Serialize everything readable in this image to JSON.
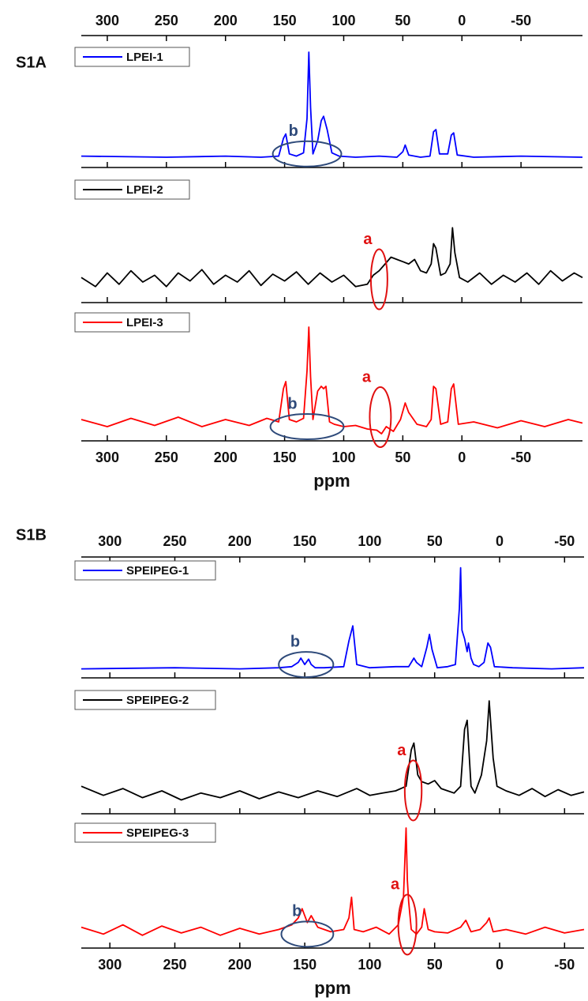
{
  "chart_data": [
    {
      "type": "line",
      "title": "S1A",
      "xlabel": "ppm",
      "xlim": [
        322,
        -102
      ],
      "xticks": [
        300,
        250,
        200,
        150,
        100,
        50,
        0,
        -50
      ],
      "ylim": [
        0,
        100
      ],
      "series": [
        {
          "name": "LPEI-1",
          "color": "#0000ff",
          "x": [
            322,
            250,
            200,
            170,
            155,
            151,
            149,
            146,
            140,
            134,
            131,
            129.5,
            128,
            126,
            122,
            119,
            117,
            114,
            110,
            104,
            90,
            70,
            55,
            50,
            48,
            45,
            35,
            27,
            24,
            22,
            19,
            12,
            9,
            7,
            4,
            -10,
            -50,
            -102
          ],
          "values": [
            6,
            5,
            6,
            5,
            6,
            22,
            26,
            8,
            6,
            9,
            40,
            100,
            50,
            8,
            20,
            38,
            42,
            30,
            9,
            6,
            5,
            6,
            5,
            10,
            16,
            7,
            5,
            6,
            28,
            30,
            8,
            8,
            25,
            27,
            7,
            5,
            6,
            5
          ]
        },
        {
          "name": "LPEI-2",
          "color": "#000000",
          "x": [
            322,
            310,
            300,
            290,
            280,
            270,
            260,
            250,
            240,
            230,
            220,
            210,
            200,
            190,
            180,
            170,
            160,
            150,
            140,
            130,
            120,
            110,
            100,
            90,
            80,
            75,
            70,
            65,
            60,
            55,
            50,
            45,
            40,
            35,
            30,
            26,
            24,
            22,
            18,
            14,
            10,
            8,
            6,
            2,
            -5,
            -15,
            -25,
            -35,
            -45,
            -55,
            -65,
            -75,
            -85,
            -95,
            -102
          ],
          "values": [
            18,
            10,
            22,
            12,
            24,
            14,
            20,
            10,
            22,
            15,
            25,
            12,
            20,
            14,
            24,
            11,
            21,
            15,
            23,
            12,
            22,
            14,
            20,
            10,
            12,
            20,
            24,
            30,
            36,
            34,
            32,
            30,
            34,
            24,
            22,
            30,
            48,
            44,
            20,
            22,
            30,
            62,
            40,
            18,
            14,
            22,
            12,
            20,
            14,
            22,
            12,
            24,
            15,
            22,
            18
          ]
        },
        {
          "name": "LPEI-3",
          "color": "#ff0000",
          "x": [
            322,
            300,
            280,
            260,
            240,
            220,
            200,
            180,
            165,
            155,
            151,
            149,
            146,
            140,
            134,
            131,
            129.5,
            128,
            126,
            122,
            119,
            117,
            115,
            112,
            108,
            100,
            90,
            80,
            72,
            68,
            64,
            58,
            52,
            48,
            45,
            38,
            30,
            26,
            24,
            22,
            18,
            12,
            9,
            7,
            3,
            -10,
            -30,
            -50,
            -70,
            -90,
            -102
          ],
          "values": [
            14,
            8,
            15,
            9,
            16,
            8,
            14,
            9,
            15,
            12,
            40,
            46,
            14,
            12,
            15,
            55,
            92,
            50,
            14,
            38,
            42,
            40,
            42,
            12,
            10,
            8,
            9,
            6,
            5,
            2,
            8,
            4,
            14,
            28,
            20,
            10,
            8,
            14,
            42,
            40,
            10,
            12,
            40,
            44,
            10,
            12,
            7,
            13,
            8,
            14,
            11
          ]
        }
      ],
      "annotations": [
        {
          "text": "b",
          "series": 0,
          "span": [
            160,
            102
          ],
          "color": "#2e4a7a"
        },
        {
          "text": "a",
          "series": 1,
          "span": [
            77,
            63
          ],
          "color": "#e01010"
        },
        {
          "text": "b",
          "series": 2,
          "span": [
            162,
            100
          ],
          "color": "#2e4a7a"
        },
        {
          "text": "a",
          "series": 2,
          "span": [
            78,
            60
          ],
          "color": "#e01010"
        }
      ]
    },
    {
      "type": "line",
      "title": "S1B",
      "xlabel": "ppm",
      "xlim": [
        322,
        -65
      ],
      "xticks": [
        300,
        250,
        200,
        150,
        100,
        50,
        0,
        -50
      ],
      "ylim": [
        0,
        100
      ],
      "series": [
        {
          "name": "SPEIPEG-1",
          "color": "#0000ff",
          "x": [
            322,
            250,
            200,
            170,
            160,
            155,
            153,
            150,
            147,
            145,
            142,
            135,
            120,
            116,
            113,
            110,
            100,
            80,
            70,
            66,
            64,
            60,
            56,
            54,
            52,
            48,
            40,
            34,
            31,
            30,
            29,
            27,
            25,
            24,
            22,
            20,
            16,
            12,
            9,
            7,
            4,
            -10,
            -40,
            -65
          ],
          "values": [
            4,
            5,
            4,
            5,
            6,
            10,
            14,
            8,
            13,
            8,
            5,
            5,
            6,
            30,
            44,
            8,
            5,
            6,
            6,
            14,
            10,
            6,
            24,
            36,
            22,
            5,
            6,
            8,
            60,
            98,
            40,
            32,
            20,
            28,
            14,
            8,
            6,
            10,
            28,
            24,
            6,
            5,
            4,
            5
          ]
        },
        {
          "name": "SPEIPEG-2",
          "color": "#000000",
          "x": [
            322,
            305,
            290,
            275,
            260,
            245,
            230,
            215,
            200,
            185,
            170,
            155,
            140,
            125,
            110,
            100,
            90,
            80,
            72,
            68,
            66,
            63,
            60,
            55,
            50,
            45,
            40,
            35,
            30,
            27,
            25,
            22,
            19,
            14,
            10,
            8,
            5,
            2,
            -5,
            -15,
            -25,
            -35,
            -45,
            -55,
            -65
          ],
          "values": [
            20,
            12,
            18,
            10,
            16,
            8,
            14,
            10,
            16,
            9,
            15,
            10,
            16,
            11,
            18,
            12,
            14,
            16,
            20,
            52,
            58,
            30,
            24,
            22,
            25,
            18,
            16,
            14,
            20,
            70,
            78,
            20,
            14,
            30,
            60,
            95,
            45,
            20,
            16,
            12,
            18,
            11,
            17,
            12,
            15
          ]
        },
        {
          "name": "SPEIPEG-3",
          "color": "#ff0000",
          "x": [
            322,
            305,
            290,
            275,
            260,
            245,
            230,
            215,
            200,
            185,
            170,
            160,
            155,
            152,
            148,
            145,
            140,
            130,
            120,
            116,
            114,
            112,
            105,
            95,
            85,
            78,
            74,
            72,
            71,
            70,
            68,
            64,
            60,
            58,
            55,
            50,
            40,
            30,
            26,
            22,
            15,
            10,
            8,
            5,
            -5,
            -20,
            -35,
            -50,
            -65
          ],
          "values": [
            14,
            8,
            16,
            7,
            15,
            9,
            14,
            7,
            13,
            8,
            12,
            16,
            22,
            30,
            18,
            24,
            14,
            10,
            12,
            22,
            40,
            12,
            10,
            14,
            8,
            16,
            40,
            100,
            55,
            36,
            12,
            8,
            14,
            30,
            12,
            10,
            9,
            14,
            20,
            10,
            12,
            18,
            22,
            10,
            12,
            8,
            14,
            9,
            12
          ]
        }
      ],
      "annotations": [
        {
          "text": "b",
          "series": 0,
          "span": [
            170,
            128
          ],
          "color": "#2e4a7a"
        },
        {
          "text": "a",
          "series": 1,
          "span": [
            73,
            60
          ],
          "color": "#e01010"
        },
        {
          "text": "b",
          "series": 2,
          "span": [
            168,
            128
          ],
          "color": "#2e4a7a"
        },
        {
          "text": "a",
          "series": 2,
          "span": [
            78,
            64
          ],
          "color": "#e01010"
        }
      ]
    }
  ]
}
